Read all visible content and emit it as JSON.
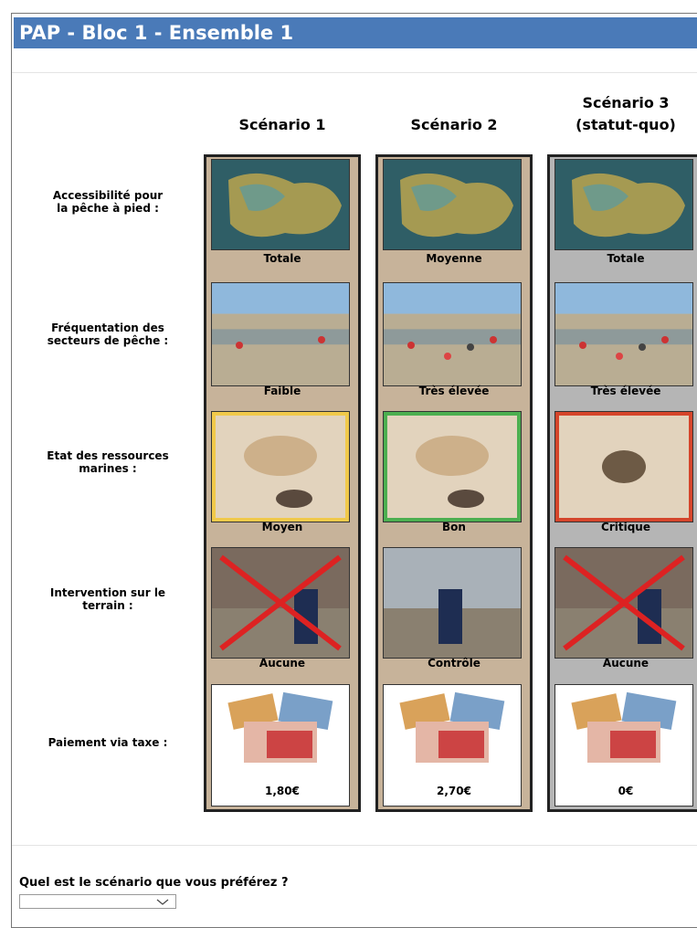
{
  "header": {
    "title": "PAP - Bloc 1 - Ensemble 1"
  },
  "attributes": [
    {
      "lines": [
        "Accessibilité pour",
        "la pêche à pied :"
      ]
    },
    {
      "lines": [
        "Fréquentation des",
        "secteurs de pêche :"
      ]
    },
    {
      "lines": [
        "Etat des ressources",
        "marines :"
      ]
    },
    {
      "lines": [
        "Intervention sur le",
        "terrain :"
      ]
    },
    {
      "lines": [
        "Paiement via taxe :"
      ]
    }
  ],
  "scenarios": [
    {
      "title": [
        "Scénario 1"
      ],
      "levels": [
        "Totale",
        "Faible",
        "Moyen",
        "Aucune",
        "1,80€"
      ]
    },
    {
      "title": [
        "Scénario 2"
      ],
      "levels": [
        "Moyenne",
        "Très élevée",
        "Bon",
        "Contrôle",
        "2,70€"
      ]
    },
    {
      "title": [
        "Scénario 3",
        "(statut-quo)"
      ],
      "levels": [
        "Totale",
        "Très élevée",
        "Critique",
        "Aucune",
        "0€"
      ]
    }
  ],
  "question": {
    "text": "Quel est le scénario que vous préférez ?"
  }
}
